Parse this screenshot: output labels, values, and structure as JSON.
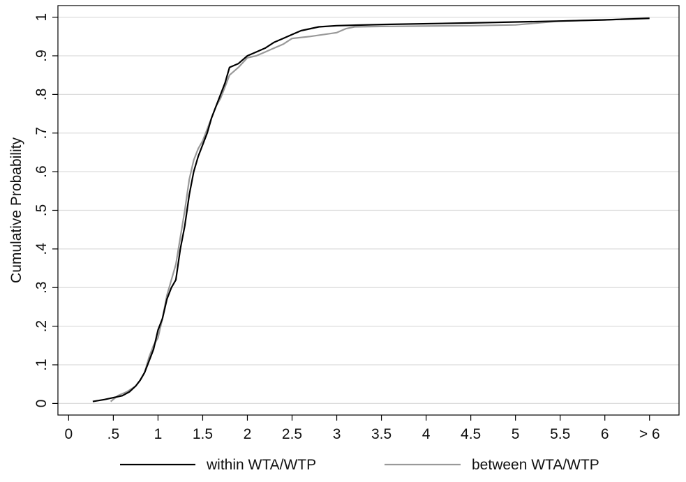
{
  "chart_data": {
    "type": "line",
    "title": "",
    "xlabel": "",
    "ylabel": "Cumulative Probability",
    "xlim": [
      0,
      6.5
    ],
    "ylim": [
      0,
      1
    ],
    "grid": "horizontal",
    "legend_position": "bottom",
    "x_ticks": [
      {
        "value": 0,
        "label": "0"
      },
      {
        "value": 0.5,
        "label": ".5"
      },
      {
        "value": 1,
        "label": "1"
      },
      {
        "value": 1.5,
        "label": "1.5"
      },
      {
        "value": 2,
        "label": "2"
      },
      {
        "value": 2.5,
        "label": "2.5"
      },
      {
        "value": 3,
        "label": "3"
      },
      {
        "value": 3.5,
        "label": "3.5"
      },
      {
        "value": 4,
        "label": "4"
      },
      {
        "value": 4.5,
        "label": "4.5"
      },
      {
        "value": 5,
        "label": "5"
      },
      {
        "value": 5.5,
        "label": "5.5"
      },
      {
        "value": 6,
        "label": "6"
      },
      {
        "value": 6.5,
        "label": "> 6"
      }
    ],
    "y_ticks": [
      {
        "value": 0,
        "label": "0"
      },
      {
        "value": 0.1,
        "label": ".1"
      },
      {
        "value": 0.2,
        "label": ".2"
      },
      {
        "value": 0.3,
        "label": ".3"
      },
      {
        "value": 0.4,
        "label": ".4"
      },
      {
        "value": 0.5,
        "label": ".5"
      },
      {
        "value": 0.6,
        "label": ".6"
      },
      {
        "value": 0.7,
        "label": ".7"
      },
      {
        "value": 0.8,
        "label": ".8"
      },
      {
        "value": 0.9,
        "label": ".9"
      },
      {
        "value": 1,
        "label": "1"
      }
    ],
    "series": [
      {
        "name": "within WTA/WTP",
        "color": "#000000",
        "points": [
          [
            0.27,
            0.005
          ],
          [
            0.4,
            0.01
          ],
          [
            0.5,
            0.015
          ],
          [
            0.6,
            0.02
          ],
          [
            0.68,
            0.03
          ],
          [
            0.75,
            0.045
          ],
          [
            0.8,
            0.06
          ],
          [
            0.85,
            0.08
          ],
          [
            0.9,
            0.11
          ],
          [
            0.95,
            0.14
          ],
          [
            1.0,
            0.19
          ],
          [
            1.05,
            0.22
          ],
          [
            1.1,
            0.27
          ],
          [
            1.15,
            0.3
          ],
          [
            1.2,
            0.32
          ],
          [
            1.25,
            0.4
          ],
          [
            1.3,
            0.46
          ],
          [
            1.35,
            0.54
          ],
          [
            1.4,
            0.6
          ],
          [
            1.45,
            0.64
          ],
          [
            1.5,
            0.67
          ],
          [
            1.55,
            0.7
          ],
          [
            1.6,
            0.74
          ],
          [
            1.65,
            0.77
          ],
          [
            1.7,
            0.8
          ],
          [
            1.75,
            0.83
          ],
          [
            1.8,
            0.87
          ],
          [
            1.9,
            0.88
          ],
          [
            2.0,
            0.9
          ],
          [
            2.1,
            0.91
          ],
          [
            2.2,
            0.92
          ],
          [
            2.3,
            0.935
          ],
          [
            2.4,
            0.945
          ],
          [
            2.5,
            0.955
          ],
          [
            2.6,
            0.965
          ],
          [
            2.8,
            0.975
          ],
          [
            3.0,
            0.978
          ],
          [
            3.5,
            0.981
          ],
          [
            4.5,
            0.985
          ],
          [
            5.5,
            0.99
          ],
          [
            6.0,
            0.993
          ],
          [
            6.5,
            0.997
          ]
        ]
      },
      {
        "name": "between WTA/WTP",
        "color": "#999999",
        "points": [
          [
            0.47,
            0.005
          ],
          [
            0.55,
            0.02
          ],
          [
            0.65,
            0.03
          ],
          [
            0.75,
            0.045
          ],
          [
            0.8,
            0.06
          ],
          [
            0.85,
            0.08
          ],
          [
            0.9,
            0.12
          ],
          [
            0.95,
            0.15
          ],
          [
            1.0,
            0.17
          ],
          [
            1.05,
            0.22
          ],
          [
            1.1,
            0.28
          ],
          [
            1.15,
            0.32
          ],
          [
            1.2,
            0.36
          ],
          [
            1.25,
            0.43
          ],
          [
            1.3,
            0.5
          ],
          [
            1.35,
            0.58
          ],
          [
            1.4,
            0.63
          ],
          [
            1.45,
            0.66
          ],
          [
            1.5,
            0.68
          ],
          [
            1.55,
            0.71
          ],
          [
            1.6,
            0.74
          ],
          [
            1.65,
            0.77
          ],
          [
            1.7,
            0.79
          ],
          [
            1.75,
            0.82
          ],
          [
            1.8,
            0.85
          ],
          [
            1.9,
            0.87
          ],
          [
            2.0,
            0.895
          ],
          [
            2.1,
            0.9
          ],
          [
            2.2,
            0.91
          ],
          [
            2.3,
            0.92
          ],
          [
            2.4,
            0.93
          ],
          [
            2.5,
            0.945
          ],
          [
            2.7,
            0.95
          ],
          [
            3.0,
            0.96
          ],
          [
            3.1,
            0.97
          ],
          [
            3.2,
            0.975
          ],
          [
            3.5,
            0.976
          ],
          [
            4.5,
            0.978
          ],
          [
            5.0,
            0.98
          ],
          [
            5.5,
            0.99
          ],
          [
            6.0,
            0.993
          ],
          [
            6.5,
            0.998
          ]
        ]
      }
    ]
  }
}
